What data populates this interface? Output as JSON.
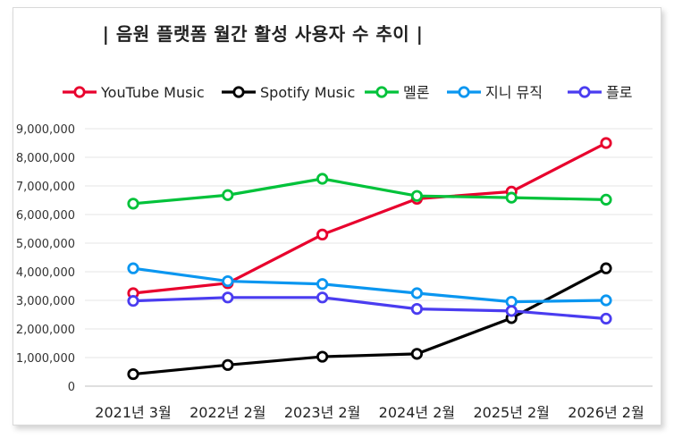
{
  "chart_data": {
    "type": "line",
    "title": "| 음원 플랫폼 월간 활성 사용자 수 추이 |",
    "xlabel": "",
    "ylabel": "",
    "categories": [
      "2021년 3월",
      "2022년 2월",
      "2023년 2월",
      "2024년 2월",
      "2025년 2월",
      "2026년 2월"
    ],
    "ylim": [
      0,
      9000000
    ],
    "yticks": [
      0,
      1000000,
      2000000,
      3000000,
      4000000,
      5000000,
      6000000,
      7000000,
      8000000,
      9000000
    ],
    "ytick_labels": [
      "0",
      "1,000,000",
      "2,000,000",
      "3,000,000",
      "4,000,000",
      "5,000,000",
      "6,000,000",
      "7,000,000",
      "8,000,000",
      "9,000,000"
    ],
    "grid": true,
    "legend_position": "top",
    "series": [
      {
        "name": "YouTube Music",
        "color": "#e8002d",
        "values": [
          3250000,
          3600000,
          5300000,
          6550000,
          6800000,
          8500000
        ]
      },
      {
        "name": "Spotify Music",
        "color": "#000000",
        "values": [
          420000,
          740000,
          1030000,
          1130000,
          2380000,
          4120000
        ]
      },
      {
        "name": "멜론",
        "color": "#00c23a",
        "values": [
          6380000,
          6680000,
          7250000,
          6650000,
          6590000,
          6520000
        ]
      },
      {
        "name": "지니 뮤직",
        "color": "#0a96f0",
        "values": [
          4120000,
          3670000,
          3570000,
          3250000,
          2950000,
          3000000
        ]
      },
      {
        "name": "플로",
        "color": "#4a3cf0",
        "values": [
          2980000,
          3100000,
          3100000,
          2700000,
          2630000,
          2360000
        ]
      }
    ]
  }
}
